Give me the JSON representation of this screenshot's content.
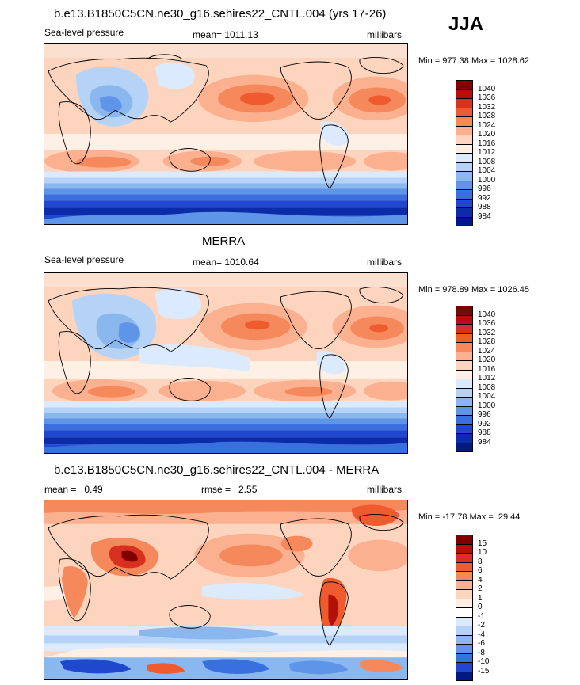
{
  "season_label": "JJA",
  "panels": [
    {
      "title": "b.e13.B1850C5CN.ne30_g16.sehires22_CNTL.004 (yrs 17-26)",
      "left_label": "Sea-level pressure",
      "center_label": "mean= 1011.13",
      "right_label": "millibars",
      "minmax": "Min = 977.38 Max = 1028.62",
      "colorbar": {
        "labels": [
          "1040",
          "1036",
          "1032",
          "1028",
          "1024",
          "1020",
          "1016",
          "1012",
          "1008",
          "1004",
          "1000",
          "996",
          "992",
          "988",
          "984"
        ],
        "colors": [
          "#800000",
          "#b2110a",
          "#d7301f",
          "#ef5a2e",
          "#f6895c",
          "#fbb08f",
          "#fdd5bf",
          "#fff0e6",
          "#dbeafc",
          "#b5d3f6",
          "#8bb7ef",
          "#5e95e8",
          "#3a6fe0",
          "#1f48cf",
          "#0c2ba8",
          "#001a82"
        ]
      }
    },
    {
      "title": "MERRA",
      "left_label": "Sea-level pressure",
      "center_label": "mean= 1010.64",
      "right_label": "millibars",
      "minmax": "Min = 978.89 Max = 1026.45",
      "colorbar": {
        "labels": [
          "1040",
          "1036",
          "1032",
          "1028",
          "1024",
          "1020",
          "1016",
          "1012",
          "1008",
          "1004",
          "1000",
          "996",
          "992",
          "988",
          "984"
        ],
        "colors": [
          "#800000",
          "#b2110a",
          "#d7301f",
          "#ef5a2e",
          "#f6895c",
          "#fbb08f",
          "#fdd5bf",
          "#fff0e6",
          "#dbeafc",
          "#b5d3f6",
          "#8bb7ef",
          "#5e95e8",
          "#3a6fe0",
          "#1f48cf",
          "#0c2ba8",
          "#001a82"
        ]
      }
    },
    {
      "title": "b.e13.B1850C5CN.ne30_g16.sehires22_CNTL.004 - MERRA",
      "left_label": "mean =   0.49",
      "center_label": "rmse =   2.55",
      "right_label": "millibars",
      "minmax": "Min = -17.78 Max =  29.44",
      "colorbar": {
        "labels": [
          "15",
          "10",
          "8",
          "6",
          "4",
          "2",
          "1",
          "0",
          "-1",
          "-2",
          "-4",
          "-6",
          "-8",
          "-10",
          "-15"
        ],
        "colors": [
          "#800000",
          "#b2110a",
          "#d7301f",
          "#ef5a2e",
          "#f6895c",
          "#fbb08f",
          "#fdd5bf",
          "#fff0e6",
          "#ffffff",
          "#dbeafc",
          "#b5d3f6",
          "#8bb7ef",
          "#5e95e8",
          "#3a6fe0",
          "#1f48cf",
          "#001a82"
        ]
      }
    }
  ]
}
